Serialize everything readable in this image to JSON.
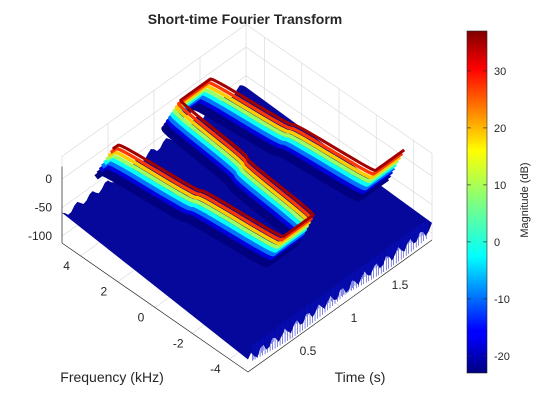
{
  "chart_data": {
    "type": "surface-3d",
    "title": "Short-time Fourier Transform",
    "xlabel": "Time (s)",
    "ylabel": "Frequency (kHz)",
    "zlabel": "",
    "x_range": [
      0,
      2
    ],
    "y_range": [
      -5,
      5
    ],
    "z_range": [
      -110,
      40
    ],
    "x_ticks": [
      "0.5",
      "1",
      "1.5"
    ],
    "x_tick_values": [
      0.5,
      1,
      1.5
    ],
    "y_ticks": [
      "4",
      "2",
      "0",
      "-2",
      "-4"
    ],
    "y_tick_values": [
      4,
      2,
      0,
      -2,
      -4
    ],
    "z_ticks": [
      "0",
      "-50",
      "-100"
    ],
    "z_tick_values": [
      0,
      -50,
      -100
    ],
    "signal": {
      "description_of_ridge": "alternating square-wave-like frequency ridge",
      "frequency_levels_khz": [
        4,
        -4
      ],
      "segment_boundaries_s": [
        0,
        0.5,
        1.0,
        1.5,
        2.0
      ],
      "peak_magnitude_db": 35,
      "floor_magnitude_db": -90
    },
    "colorbar": {
      "label": "Magnitude (dB)",
      "ticks": [
        "30",
        "20",
        "10",
        "0",
        "-10",
        "-20"
      ],
      "tick_values": [
        30,
        20,
        10,
        0,
        -10,
        -20
      ],
      "range": [
        -23,
        37
      ],
      "colormap": "jet"
    },
    "grid": true
  }
}
